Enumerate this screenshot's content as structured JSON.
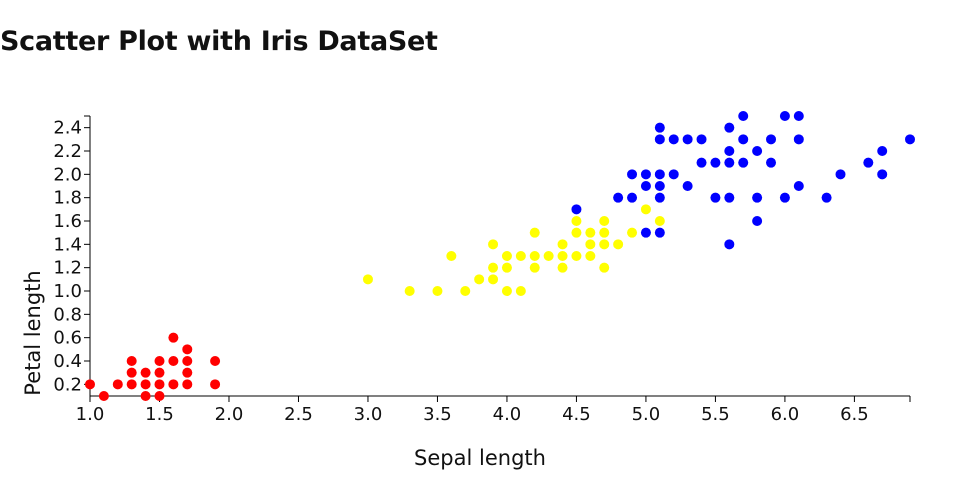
{
  "chart_data": {
    "type": "scatter",
    "title": "Scatter Plot with Iris DataSet",
    "xlabel": "Sepal length",
    "ylabel": "Petal length",
    "xlim": [
      1.0,
      6.9
    ],
    "ylim": [
      0.1,
      2.5
    ],
    "grid": false,
    "legend": "none",
    "x_ticks": [
      "1.0",
      "1.5",
      "2.0",
      "2.5",
      "3.0",
      "3.5",
      "4.0",
      "4.5",
      "5.0",
      "5.5",
      "6.0",
      "6.5"
    ],
    "y_ticks": [
      "0.2",
      "0.4",
      "0.6",
      "0.8",
      "1.0",
      "1.2",
      "1.4",
      "1.6",
      "1.8",
      "2.0",
      "2.2",
      "2.4"
    ],
    "series": [
      {
        "color": "#ff0000",
        "points": [
          [
            1.0,
            0.2
          ],
          [
            1.1,
            0.1
          ],
          [
            1.2,
            0.2
          ],
          [
            1.3,
            0.2
          ],
          [
            1.3,
            0.3
          ],
          [
            1.3,
            0.4
          ],
          [
            1.4,
            0.1
          ],
          [
            1.4,
            0.2
          ],
          [
            1.4,
            0.3
          ],
          [
            1.5,
            0.1
          ],
          [
            1.5,
            0.2
          ],
          [
            1.5,
            0.3
          ],
          [
            1.5,
            0.4
          ],
          [
            1.6,
            0.2
          ],
          [
            1.6,
            0.4
          ],
          [
            1.6,
            0.6
          ],
          [
            1.7,
            0.2
          ],
          [
            1.7,
            0.3
          ],
          [
            1.7,
            0.4
          ],
          [
            1.7,
            0.5
          ],
          [
            1.9,
            0.2
          ],
          [
            1.9,
            0.4
          ]
        ]
      },
      {
        "color": "#ffff00",
        "points": [
          [
            3.0,
            1.1
          ],
          [
            3.3,
            1.0
          ],
          [
            3.5,
            1.0
          ],
          [
            3.6,
            1.3
          ],
          [
            3.7,
            1.0
          ],
          [
            3.8,
            1.1
          ],
          [
            3.9,
            1.1
          ],
          [
            3.9,
            1.2
          ],
          [
            3.9,
            1.4
          ],
          [
            4.0,
            1.0
          ],
          [
            4.0,
            1.2
          ],
          [
            4.0,
            1.3
          ],
          [
            4.1,
            1.0
          ],
          [
            4.1,
            1.3
          ],
          [
            4.2,
            1.2
          ],
          [
            4.2,
            1.3
          ],
          [
            4.2,
            1.5
          ],
          [
            4.3,
            1.3
          ],
          [
            4.4,
            1.2
          ],
          [
            4.4,
            1.3
          ],
          [
            4.4,
            1.4
          ],
          [
            4.5,
            1.3
          ],
          [
            4.5,
            1.5
          ],
          [
            4.5,
            1.6
          ],
          [
            4.6,
            1.3
          ],
          [
            4.6,
            1.4
          ],
          [
            4.6,
            1.5
          ],
          [
            4.7,
            1.2
          ],
          [
            4.7,
            1.4
          ],
          [
            4.7,
            1.5
          ],
          [
            4.7,
            1.6
          ],
          [
            4.8,
            1.4
          ],
          [
            4.9,
            1.5
          ],
          [
            5.0,
            1.7
          ],
          [
            5.1,
            1.6
          ]
        ]
      },
      {
        "color": "#0000ff",
        "points": [
          [
            4.5,
            1.7
          ],
          [
            4.8,
            1.8
          ],
          [
            4.9,
            1.8
          ],
          [
            4.9,
            2.0
          ],
          [
            5.0,
            1.5
          ],
          [
            5.0,
            1.9
          ],
          [
            5.0,
            2.0
          ],
          [
            5.1,
            1.5
          ],
          [
            5.1,
            1.8
          ],
          [
            5.1,
            1.9
          ],
          [
            5.1,
            2.0
          ],
          [
            5.1,
            2.3
          ],
          [
            5.1,
            2.4
          ],
          [
            5.2,
            2.0
          ],
          [
            5.2,
            2.3
          ],
          [
            5.3,
            1.9
          ],
          [
            5.3,
            2.3
          ],
          [
            5.4,
            2.1
          ],
          [
            5.4,
            2.3
          ],
          [
            5.5,
            1.8
          ],
          [
            5.5,
            2.1
          ],
          [
            5.6,
            1.4
          ],
          [
            5.6,
            1.8
          ],
          [
            5.6,
            2.1
          ],
          [
            5.6,
            2.2
          ],
          [
            5.6,
            2.4
          ],
          [
            5.7,
            2.1
          ],
          [
            5.7,
            2.3
          ],
          [
            5.7,
            2.5
          ],
          [
            5.8,
            1.6
          ],
          [
            5.8,
            1.8
          ],
          [
            5.8,
            2.2
          ],
          [
            5.9,
            2.1
          ],
          [
            5.9,
            2.3
          ],
          [
            6.0,
            1.8
          ],
          [
            6.0,
            2.5
          ],
          [
            6.1,
            1.9
          ],
          [
            6.1,
            2.3
          ],
          [
            6.1,
            2.5
          ],
          [
            6.3,
            1.8
          ],
          [
            6.4,
            2.0
          ],
          [
            6.6,
            2.1
          ],
          [
            6.7,
            2.0
          ],
          [
            6.7,
            2.2
          ],
          [
            6.9,
            2.3
          ]
        ]
      }
    ]
  }
}
